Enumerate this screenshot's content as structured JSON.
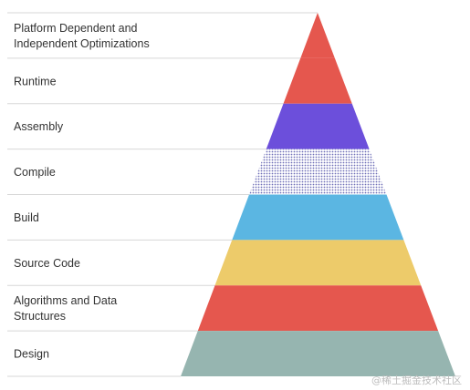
{
  "pyramid": {
    "levels": [
      {
        "label_lines": [
          "Platform Dependent and",
          "Independent Optimizations"
        ],
        "color": "#E5574E"
      },
      {
        "label_lines": [
          "Runtime"
        ],
        "color": "#E5574E"
      },
      {
        "label_lines": [
          "Assembly"
        ],
        "color": "#6C4FDB"
      },
      {
        "label_lines": [
          "Compile"
        ],
        "color": "#8E90C8",
        "pattern": "dotted"
      },
      {
        "label_lines": [
          "Build"
        ],
        "color": "#5BB6E2"
      },
      {
        "label_lines": [
          "Source Code"
        ],
        "color": "#EDCB6A"
      },
      {
        "label_lines": [
          "Algorithms and Data",
          "Structures"
        ],
        "color": "#E5574E"
      },
      {
        "label_lines": [
          "Design"
        ],
        "color": "#96B5B0"
      }
    ],
    "line_color": "#D7D7D7",
    "label_color": "#333333"
  },
  "watermark": "@稀土掘金技术社区"
}
